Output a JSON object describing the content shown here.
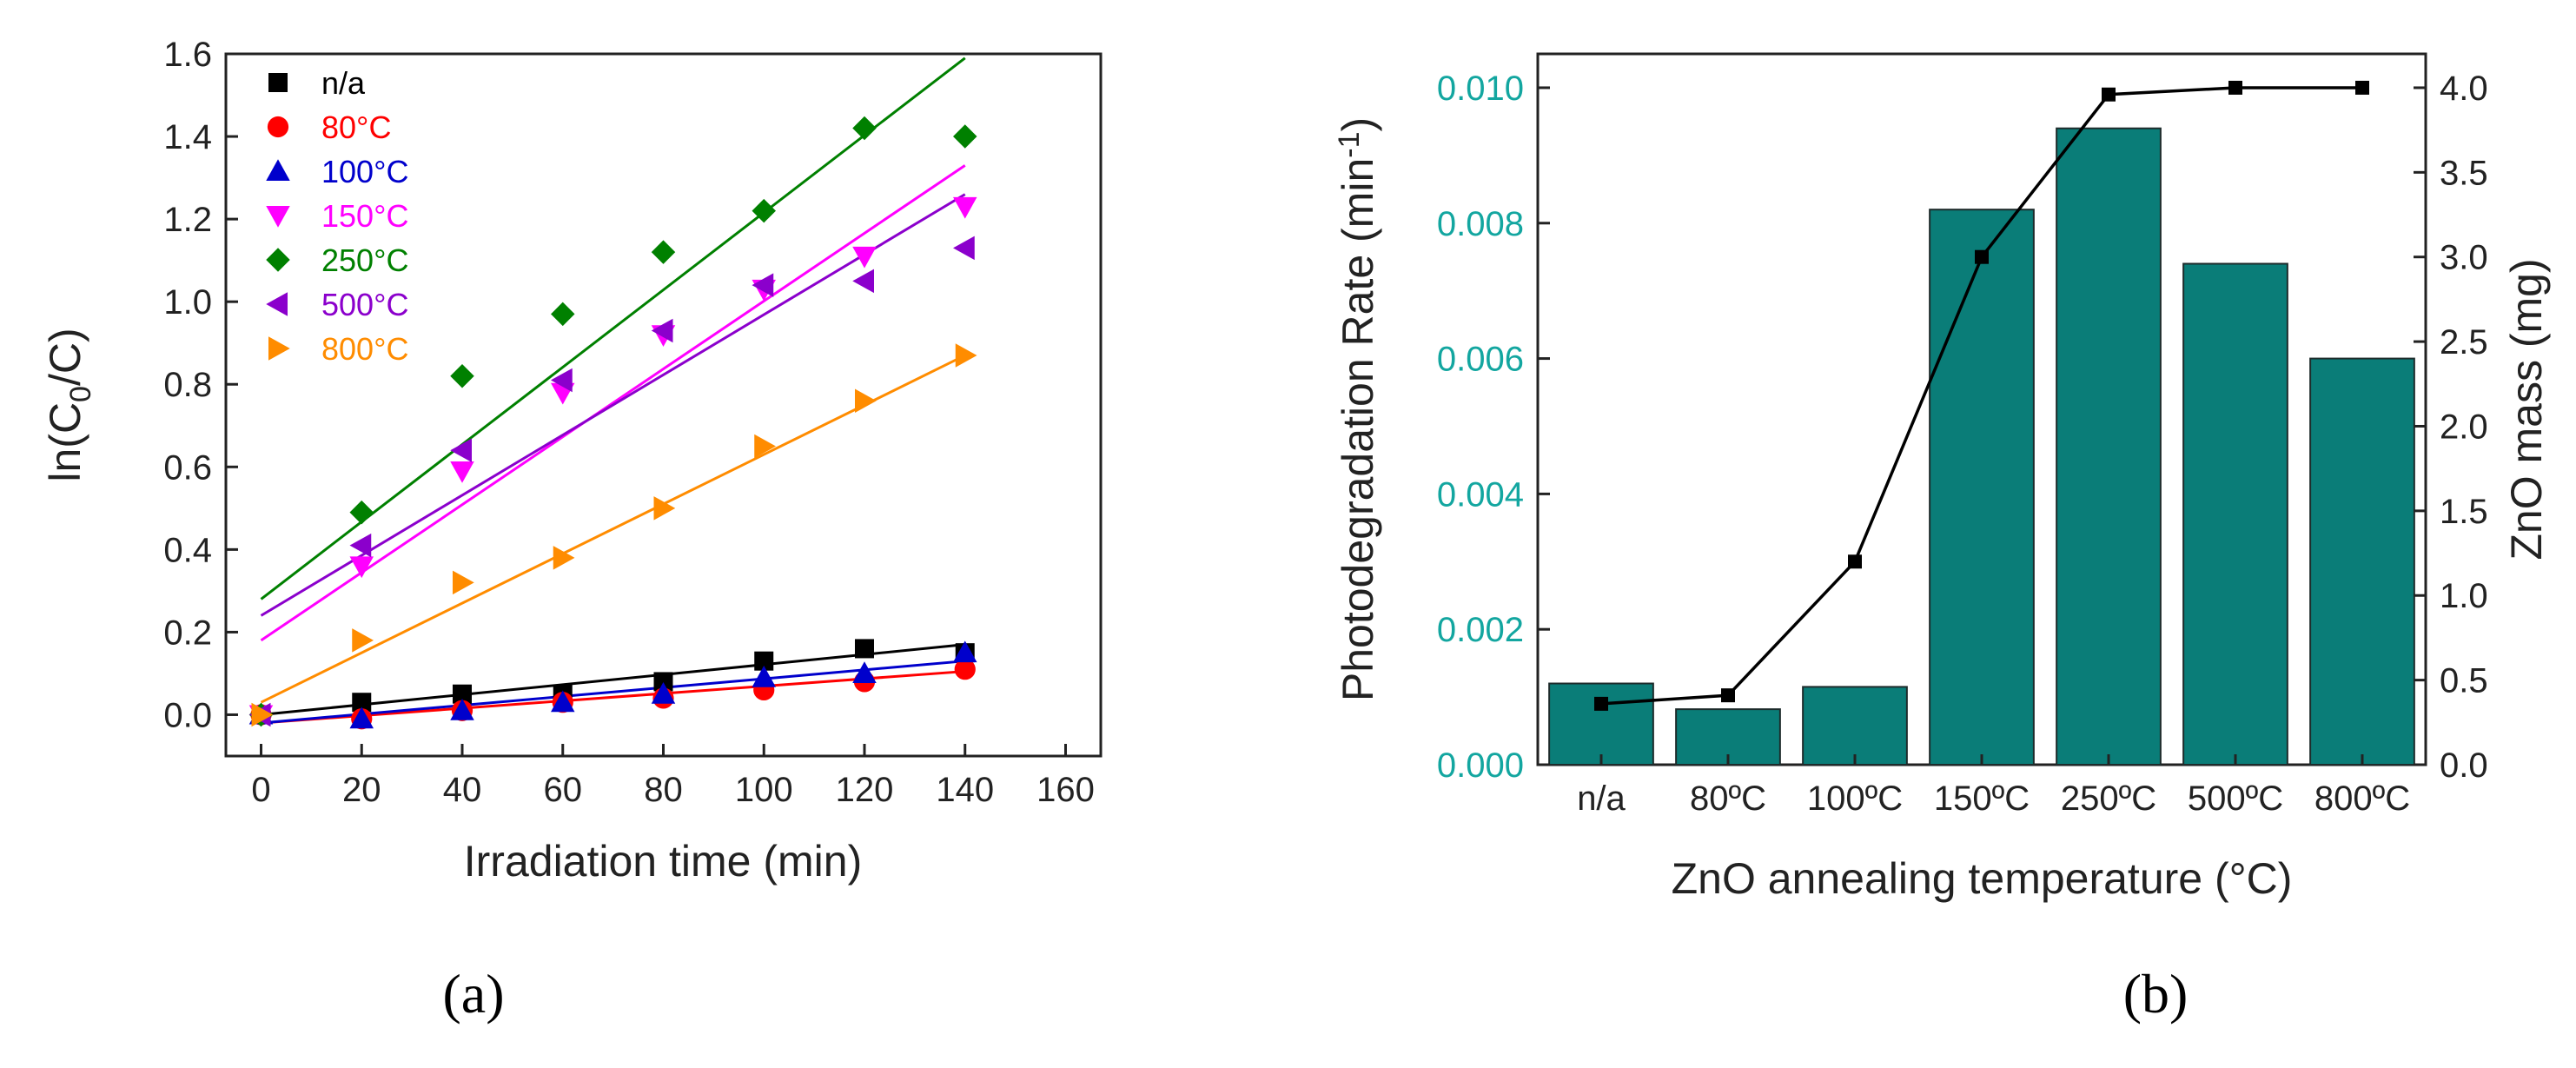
{
  "chart_data": [
    {
      "panel": "(a)",
      "type": "scatter",
      "xlabel": "Irradiation time (min)",
      "ylabel_main": "ln(C",
      "ylabel_sub": "0",
      "ylabel_tail": "/C)",
      "xlim": [
        -7,
        167
      ],
      "ylim": [
        -0.1,
        1.6
      ],
      "xticks": [
        0,
        20,
        40,
        60,
        80,
        100,
        120,
        140,
        160
      ],
      "yticks": [
        0.0,
        0.2,
        0.4,
        0.6,
        0.8,
        1.0,
        1.2,
        1.4,
        1.6
      ],
      "ytick_labels": [
        "0.0",
        "0.2",
        "0.4",
        "0.6",
        "0.8",
        "1.0",
        "1.2",
        "1.4",
        "1.6"
      ],
      "series": [
        {
          "name": "n/a",
          "color": "#000000",
          "marker": "square",
          "x": [
            0,
            20,
            40,
            60,
            80,
            100,
            120,
            140
          ],
          "y": [
            0.0,
            0.03,
            0.05,
            0.05,
            0.08,
            0.13,
            0.16,
            0.15
          ],
          "fit": [
            0.0,
            0.17
          ]
        },
        {
          "name": "80°C",
          "color": "#ff0000",
          "marker": "circle",
          "x": [
            0,
            20,
            40,
            60,
            80,
            100,
            120,
            140
          ],
          "y": [
            0.0,
            -0.01,
            0.01,
            0.03,
            0.04,
            0.06,
            0.08,
            0.11
          ],
          "fit": [
            -0.02,
            0.105
          ]
        },
        {
          "name": "100°C",
          "color": "#0000cc",
          "marker": "triangle-up",
          "x": [
            0,
            20,
            40,
            60,
            80,
            100,
            120,
            140
          ],
          "y": [
            0.0,
            -0.01,
            0.01,
            0.03,
            0.05,
            0.09,
            0.1,
            0.15
          ],
          "fit": [
            -0.02,
            0.13
          ]
        },
        {
          "name": "150°C",
          "color": "#ff00ff",
          "marker": "triangle-down",
          "x": [
            0,
            20,
            40,
            60,
            80,
            100,
            120,
            140
          ],
          "y": [
            0.0,
            0.36,
            0.59,
            0.78,
            0.92,
            1.03,
            1.11,
            1.23
          ],
          "fit": [
            0.18,
            1.33
          ]
        },
        {
          "name": "250°C",
          "color": "#008000",
          "marker": "diamond",
          "x": [
            0,
            20,
            40,
            60,
            80,
            100,
            120,
            140
          ],
          "y": [
            0.0,
            0.49,
            0.82,
            0.97,
            1.12,
            1.22,
            1.42,
            1.4
          ],
          "fit": [
            0.28,
            1.59
          ]
        },
        {
          "name": "500°C",
          "color": "#8b00cc",
          "marker": "triangle-left",
          "x": [
            0,
            20,
            40,
            60,
            80,
            100,
            120,
            140
          ],
          "y": [
            0.0,
            0.41,
            0.64,
            0.81,
            0.93,
            1.04,
            1.05,
            1.13
          ],
          "fit": [
            0.24,
            1.26
          ]
        },
        {
          "name": "800°C",
          "color": "#ff8c00",
          "marker": "triangle-right",
          "x": [
            0,
            20,
            40,
            60,
            80,
            100,
            120,
            140
          ],
          "y": [
            0.0,
            0.18,
            0.32,
            0.38,
            0.5,
            0.65,
            0.76,
            0.87
          ],
          "fit": [
            0.03,
            0.87
          ]
        }
      ]
    },
    {
      "panel": "(b)",
      "type": "bar",
      "xlabel": "ZnO annealing temperature (°C)",
      "categories": [
        "n/a",
        "80ºC",
        "100ºC",
        "150ºC",
        "250ºC",
        "500ºC",
        "800ºC"
      ],
      "ylabel_left_main": "Photodegradation Rate (min",
      "ylabel_left_sup": "-1",
      "ylabel_left_tail": ")",
      "ylabel_right": "ZnO mass (mg)",
      "ylim_left": [
        0,
        0.0105
      ],
      "yticks_left": [
        0.0,
        0.002,
        0.004,
        0.006,
        0.008,
        0.01
      ],
      "ytick_labels_left": [
        "0.000",
        "0.002",
        "0.004",
        "0.006",
        "0.008",
        "0.010"
      ],
      "ylim_right": [
        0,
        4.2
      ],
      "yticks_right": [
        0.0,
        0.5,
        1.0,
        1.5,
        2.0,
        2.5,
        3.0,
        3.5,
        4.0
      ],
      "ytick_labels_right": [
        "0.0",
        "0.5",
        "1.0",
        "1.5",
        "2.0",
        "2.5",
        "3.0",
        "3.5",
        "4.0"
      ],
      "series": [
        {
          "name": "Photodegradation Rate",
          "axis": "left",
          "type": "bar",
          "color": "#0a7d78",
          "values": [
            0.0012,
            0.00082,
            0.00115,
            0.0082,
            0.0094,
            0.0074,
            0.006
          ]
        },
        {
          "name": "ZnO mass",
          "axis": "right",
          "type": "line",
          "color": "#000000",
          "values": [
            0.36,
            0.41,
            1.2,
            3.0,
            3.96,
            4.0,
            4.0
          ]
        }
      ],
      "accent_color": "#13a6a0"
    }
  ]
}
